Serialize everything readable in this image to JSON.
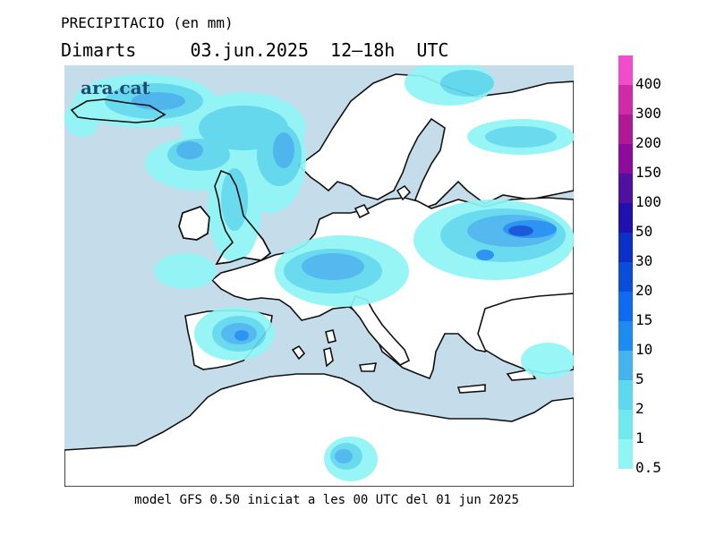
{
  "title": {
    "line1": "PRECIPITACIO (en mm)",
    "line2": "Dimarts     03.jun.2025  12–18h  UTC"
  },
  "logo": "ara.cat",
  "footer": "model GFS 0.50 iniciat a les 00 UTC del 01 jun 2025",
  "legend": [
    {
      "label": "0.5",
      "color": "#90f5f5"
    },
    {
      "label": "1",
      "color": "#70e8f0"
    },
    {
      "label": "2",
      "color": "#5ed8ee"
    },
    {
      "label": "5",
      "color": "#47b2ee"
    },
    {
      "label": "10",
      "color": "#1d8bf0"
    },
    {
      "label": "15",
      "color": "#0f6af0"
    },
    {
      "label": "20",
      "color": "#0a4dd8"
    },
    {
      "label": "30",
      "color": "#0a30c8"
    },
    {
      "label": "50",
      "color": "#2010b0"
    },
    {
      "label": "100",
      "color": "#5010a0"
    },
    {
      "label": "150",
      "color": "#8c0a9c"
    },
    {
      "label": "200",
      "color": "#b01894"
    },
    {
      "label": "300",
      "color": "#d02aa8"
    },
    {
      "label": "400",
      "color": "#f04ccc"
    }
  ]
}
